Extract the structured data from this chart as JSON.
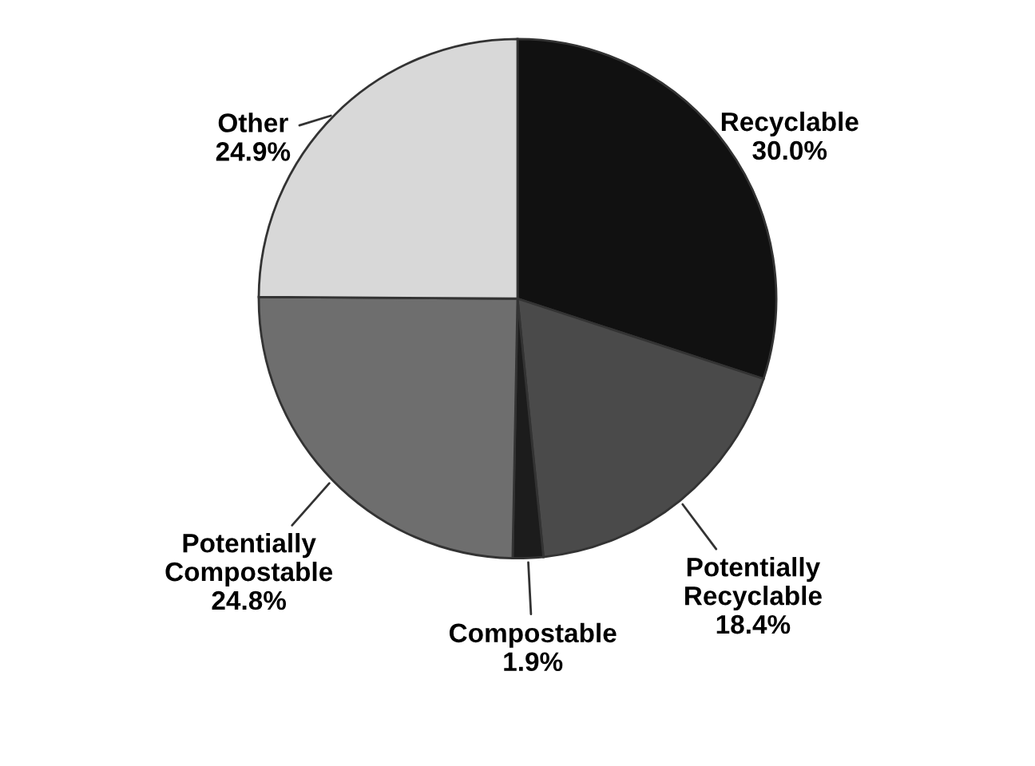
{
  "chart_data": {
    "type": "pie",
    "categories": [
      "Recyclable",
      "Potentially Recyclable",
      "Compostable",
      "Potentially Compostable",
      "Other"
    ],
    "values": [
      30.0,
      18.4,
      1.9,
      24.8,
      24.9
    ],
    "colors": [
      "#111111",
      "#4a4a4a",
      "#1c1c1c",
      "#6e6e6e",
      "#d8d8d8"
    ],
    "value_labels": [
      "30.0%",
      "18.4%",
      "1.9%",
      "24.8%",
      "24.9%"
    ]
  }
}
